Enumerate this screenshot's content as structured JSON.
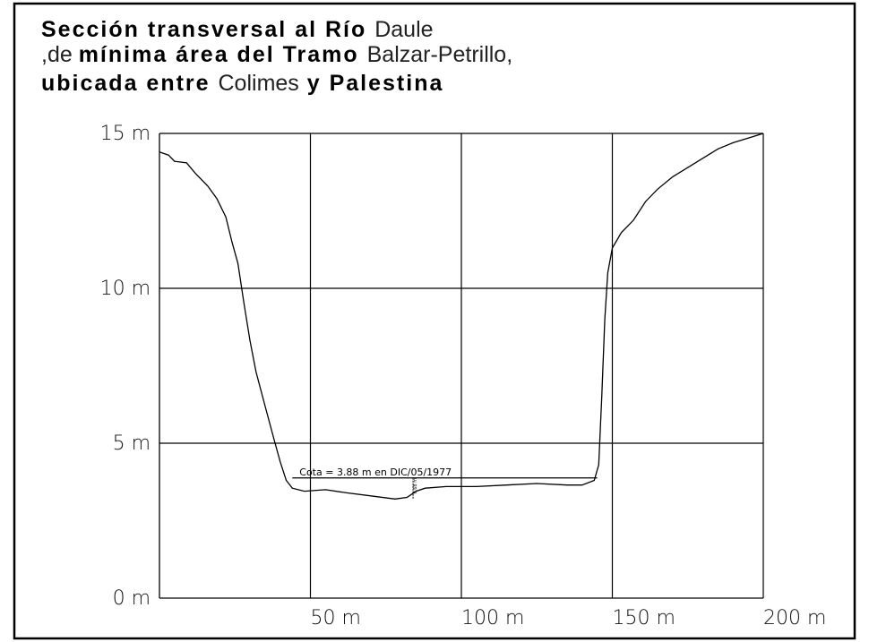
{
  "chart_data": {
    "type": "line",
    "title": {
      "line1": [
        {
          "text": "Sección transversal al Río ",
          "bold": true
        },
        {
          "text": "Daule",
          "bold": false
        }
      ],
      "line2": [
        {
          "text": ",de ",
          "bold": false
        },
        {
          "text": "mínima área del Tramo ",
          "bold": true
        },
        {
          "text": "Balzar-Petrillo,",
          "bold": false
        }
      ],
      "line3": [
        {
          "text": "ubicada entre ",
          "bold": true
        },
        {
          "text": "Colimes",
          "bold": false
        },
        {
          "text": " y Palestina",
          "bold": true
        }
      ]
    },
    "xlim": [
      0,
      200
    ],
    "ylim": [
      0,
      15
    ],
    "grid": true,
    "x_ticks": [
      {
        "value": 50,
        "label": "50  m"
      },
      {
        "value": 100,
        "label": "100  m"
      },
      {
        "value": 150,
        "label": "150  m"
      },
      {
        "value": 200,
        "label": "200  m"
      }
    ],
    "y_ticks": [
      {
        "value": 0,
        "label": "0  m"
      },
      {
        "value": 5,
        "label": "5  m"
      },
      {
        "value": 10,
        "label": "10  m"
      },
      {
        "value": 15,
        "label": "15  m"
      }
    ],
    "series": [
      {
        "points": [
          [
            0,
            14.4
          ],
          [
            3,
            14.3
          ],
          [
            5,
            14.1
          ],
          [
            9,
            14.05
          ],
          [
            12,
            13.7
          ],
          [
            16,
            13.3
          ],
          [
            19,
            12.9
          ],
          [
            22,
            12.3
          ],
          [
            24,
            11.5
          ],
          [
            26,
            10.8
          ],
          [
            28,
            9.5
          ],
          [
            30,
            8.3
          ],
          [
            32,
            7.3
          ],
          [
            35,
            6.2
          ],
          [
            38,
            5.1
          ],
          [
            40,
            4.4
          ],
          [
            42,
            3.8
          ],
          [
            44,
            3.55
          ],
          [
            48,
            3.45
          ],
          [
            55,
            3.5
          ],
          [
            62,
            3.4
          ],
          [
            70,
            3.3
          ],
          [
            78,
            3.2
          ],
          [
            82,
            3.25
          ],
          [
            85,
            3.45
          ],
          [
            88,
            3.55
          ],
          [
            95,
            3.6
          ],
          [
            105,
            3.6
          ],
          [
            115,
            3.65
          ],
          [
            125,
            3.7
          ],
          [
            135,
            3.65
          ],
          [
            140,
            3.65
          ],
          [
            144,
            3.8
          ],
          [
            145.5,
            4.3
          ],
          [
            146.5,
            6.5
          ],
          [
            147.5,
            9.0
          ],
          [
            148.5,
            10.5
          ],
          [
            150,
            11.3
          ],
          [
            153,
            11.8
          ],
          [
            157,
            12.2
          ],
          [
            161,
            12.8
          ],
          [
            165,
            13.2
          ],
          [
            170,
            13.6
          ],
          [
            175,
            13.9
          ],
          [
            180,
            14.2
          ],
          [
            185,
            14.5
          ],
          [
            190,
            14.7
          ],
          [
            195,
            14.85
          ],
          [
            200,
            15.0
          ]
        ]
      }
    ],
    "annotations": [
      {
        "text": "Cota = 3.88 m en DIC/05/1977",
        "y": 3.88,
        "x_start": 44,
        "x_end": 145
      },
      {
        "text": "0.68 m",
        "x": 84,
        "y_top": 3.88,
        "y_bottom": 3.2
      }
    ]
  }
}
